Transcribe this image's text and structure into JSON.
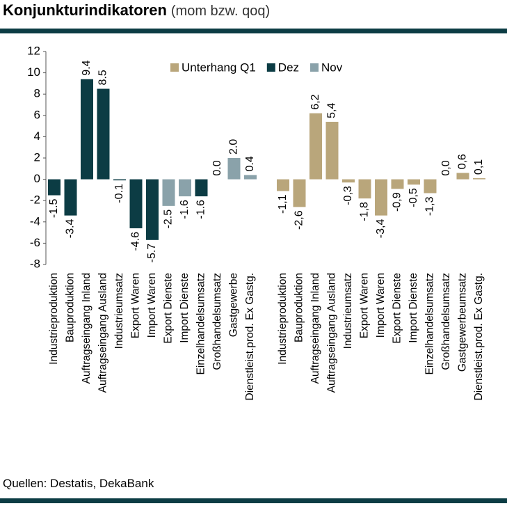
{
  "chart_data": {
    "type": "bar",
    "title": "Konjunkturindikatoren",
    "subtitle": "(mom bzw. qoq)",
    "source": "Quellen: Destatis, DekaBank",
    "categories": [
      "Industrieproduktion",
      "Bauproduktion",
      "Auftragseingang Inland",
      "Auftragseingang Ausland",
      "Industrieumsatz",
      "Export Waren",
      "Import Waren",
      "Export Dienste",
      "Import Dienste",
      "Einzelhandelsumsatz",
      "Großhandelsumsatz",
      "Gastgewerbe",
      "Dienstleist.prod. Ex Gastg.",
      null,
      "Industrieproduktion",
      "Bauproduktion",
      "Auftragseingang Inland",
      "Auftragseingang Ausland",
      "Industrieumsatz",
      "Export Waren",
      "Import Waren",
      "Export Dienste",
      "Import Dienste",
      "Einzelhandelsumsatz",
      "Großhandelsumsatz",
      "Gastgewerbeumsatz",
      "Dienstleist.prod. Ex Gastg."
    ],
    "series": [
      {
        "name": "Unterhang Q1",
        "color": "#b9a67b",
        "values": [
          null,
          null,
          null,
          null,
          null,
          null,
          null,
          null,
          null,
          null,
          null,
          null,
          null,
          null,
          -1.1,
          -2.6,
          6.2,
          5.4,
          -0.3,
          -1.8,
          -3.4,
          -0.9,
          -0.5,
          -1.3,
          0.0,
          0.6,
          0.1
        ],
        "value_labels": [
          null,
          null,
          null,
          null,
          null,
          null,
          null,
          null,
          null,
          null,
          null,
          null,
          null,
          null,
          "-1,1",
          "-2,6",
          "6,2",
          "5,4",
          "-0,3",
          "-1,8",
          "-3,4",
          "-0,9",
          "-0,5",
          "-1,3",
          "0,0",
          "0,6",
          "0,1"
        ]
      },
      {
        "name": "Dez",
        "color": "#0c3c44",
        "values": [
          -1.5,
          -3.4,
          9.4,
          8.5,
          -0.1,
          -4.6,
          -5.7,
          null,
          null,
          -1.6,
          null,
          null,
          null,
          null,
          null,
          null,
          null,
          null,
          null,
          null,
          null,
          null,
          null,
          null,
          null,
          null,
          null
        ],
        "value_labels": [
          "-1.5",
          "-3.4",
          "9.4",
          "8.5",
          "-0.1",
          "-4.6",
          "-5.7",
          null,
          null,
          "-1.6",
          null,
          null,
          null,
          null,
          null,
          null,
          null,
          null,
          null,
          null,
          null,
          null,
          null,
          null,
          null,
          null,
          null
        ]
      },
      {
        "name": "Nov",
        "color": "#8aa2aa",
        "values": [
          null,
          null,
          null,
          null,
          null,
          null,
          null,
          -2.5,
          -1.6,
          null,
          0.0,
          2.0,
          0.4,
          null,
          null,
          null,
          null,
          null,
          null,
          null,
          null,
          null,
          null,
          null,
          null,
          null,
          null
        ],
        "value_labels": [
          null,
          null,
          null,
          null,
          null,
          null,
          null,
          "-2.5",
          "-1.6",
          null,
          "0.0",
          "2.0",
          "0.4",
          null,
          null,
          null,
          null,
          null,
          null,
          null,
          null,
          null,
          null,
          null,
          null,
          null,
          null
        ]
      }
    ],
    "ylim": [
      -8,
      12
    ],
    "yticks": [
      -8,
      -6,
      -4,
      -2,
      0,
      2,
      4,
      6,
      8,
      10,
      12
    ],
    "grid": false,
    "legend": "top-right"
  }
}
